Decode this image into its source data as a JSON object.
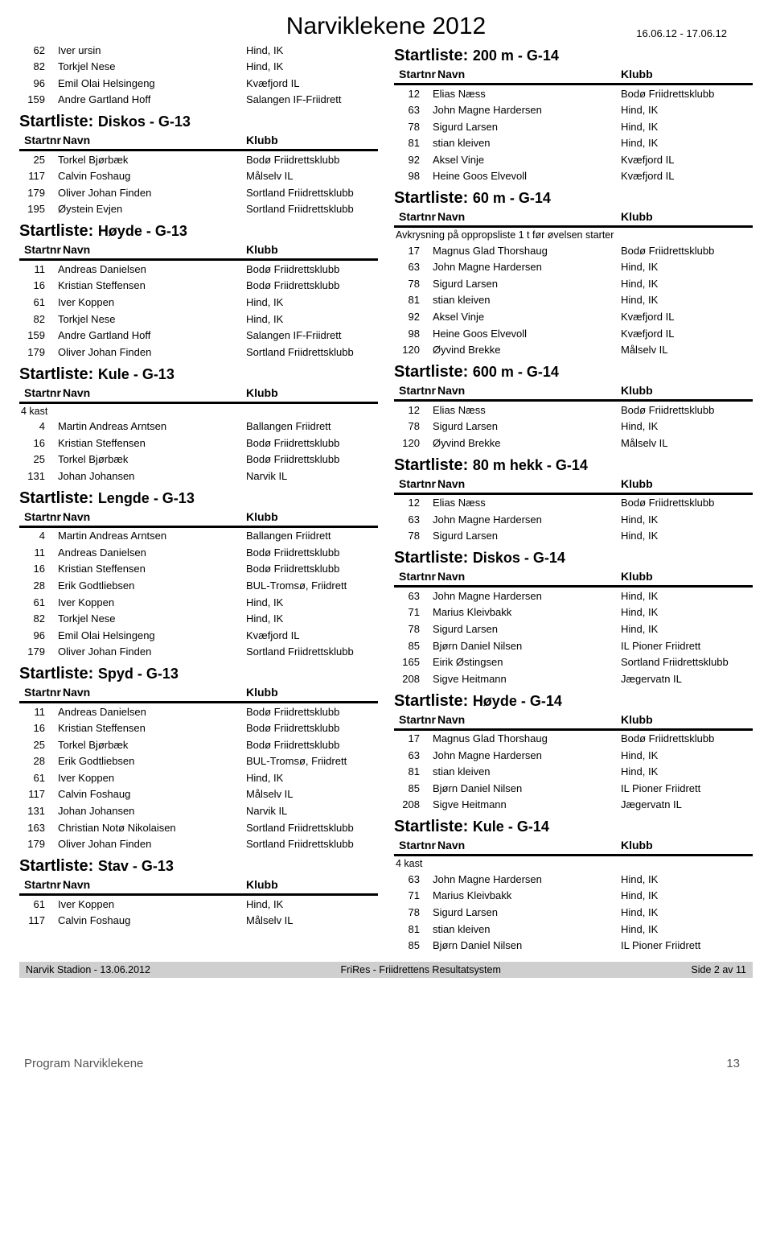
{
  "header": {
    "title": "Narviklekene 2012",
    "date_range": "16.06.12 - 17.06.12"
  },
  "labels": {
    "startliste": "Startliste:",
    "startnr": "Startnr",
    "navn": "Navn",
    "klubb": "Klubb"
  },
  "left": {
    "pre_rows": [
      {
        "nr": "62",
        "name": "Iver ursin",
        "club": "Hind, IK"
      },
      {
        "nr": "82",
        "name": "Torkjel Nese",
        "club": "Hind, IK"
      },
      {
        "nr": "96",
        "name": "Emil Olai Helsingeng",
        "club": "Kvæfjord IL"
      },
      {
        "nr": "159",
        "name": "Andre Gartland Hoff",
        "club": "Salangen IF-Friidrett"
      }
    ],
    "sections": [
      {
        "event": "Diskos - G-13",
        "rows": [
          {
            "nr": "25",
            "name": "Torkel Bjørbæk",
            "club": "Bodø Friidrettsklubb"
          },
          {
            "nr": "117",
            "name": "Calvin Foshaug",
            "club": "Målselv IL"
          },
          {
            "nr": "179",
            "name": "Oliver Johan Finden",
            "club": "Sortland Friidrettsklubb"
          },
          {
            "nr": "195",
            "name": "Øystein Evjen",
            "club": "Sortland Friidrettsklubb"
          }
        ]
      },
      {
        "event": "Høyde - G-13",
        "rows": [
          {
            "nr": "11",
            "name": "Andreas Danielsen",
            "club": "Bodø Friidrettsklubb"
          },
          {
            "nr": "16",
            "name": "Kristian Steffensen",
            "club": "Bodø Friidrettsklubb"
          },
          {
            "nr": "61",
            "name": "Iver Koppen",
            "club": "Hind, IK"
          },
          {
            "nr": "82",
            "name": "Torkjel Nese",
            "club": "Hind, IK"
          },
          {
            "nr": "159",
            "name": "Andre Gartland Hoff",
            "club": "Salangen IF-Friidrett"
          },
          {
            "nr": "179",
            "name": "Oliver Johan Finden",
            "club": "Sortland Friidrettsklubb"
          }
        ]
      },
      {
        "event": "Kule - G-13",
        "note": "4 kast",
        "rows": [
          {
            "nr": "4",
            "name": "Martin Andreas Arntsen",
            "club": "Ballangen Friidrett"
          },
          {
            "nr": "16",
            "name": "Kristian Steffensen",
            "club": "Bodø Friidrettsklubb"
          },
          {
            "nr": "25",
            "name": "Torkel Bjørbæk",
            "club": "Bodø Friidrettsklubb"
          },
          {
            "nr": "131",
            "name": "Johan Johansen",
            "club": "Narvik IL"
          }
        ]
      },
      {
        "event": "Lengde - G-13",
        "rows": [
          {
            "nr": "4",
            "name": "Martin Andreas Arntsen",
            "club": "Ballangen Friidrett"
          },
          {
            "nr": "11",
            "name": "Andreas Danielsen",
            "club": "Bodø Friidrettsklubb"
          },
          {
            "nr": "16",
            "name": "Kristian Steffensen",
            "club": "Bodø Friidrettsklubb"
          },
          {
            "nr": "28",
            "name": "Erik Godtliebsen",
            "club": "BUL-Tromsø, Friidrett"
          },
          {
            "nr": "61",
            "name": "Iver Koppen",
            "club": "Hind, IK"
          },
          {
            "nr": "82",
            "name": "Torkjel Nese",
            "club": "Hind, IK"
          },
          {
            "nr": "96",
            "name": "Emil Olai Helsingeng",
            "club": "Kvæfjord IL"
          },
          {
            "nr": "179",
            "name": "Oliver Johan Finden",
            "club": "Sortland Friidrettsklubb"
          }
        ]
      },
      {
        "event": "Spyd - G-13",
        "rows": [
          {
            "nr": "11",
            "name": "Andreas Danielsen",
            "club": "Bodø Friidrettsklubb"
          },
          {
            "nr": "16",
            "name": "Kristian Steffensen",
            "club": "Bodø Friidrettsklubb"
          },
          {
            "nr": "25",
            "name": "Torkel Bjørbæk",
            "club": "Bodø Friidrettsklubb"
          },
          {
            "nr": "28",
            "name": "Erik Godtliebsen",
            "club": "BUL-Tromsø, Friidrett"
          },
          {
            "nr": "61",
            "name": "Iver Koppen",
            "club": "Hind, IK"
          },
          {
            "nr": "117",
            "name": "Calvin Foshaug",
            "club": "Målselv IL"
          },
          {
            "nr": "131",
            "name": "Johan Johansen",
            "club": "Narvik IL"
          },
          {
            "nr": "163",
            "name": "Christian Notø Nikolaisen",
            "club": "Sortland Friidrettsklubb"
          },
          {
            "nr": "179",
            "name": "Oliver Johan Finden",
            "club": "Sortland Friidrettsklubb"
          }
        ]
      },
      {
        "event": "Stav - G-13",
        "rows": [
          {
            "nr": "61",
            "name": "Iver Koppen",
            "club": "Hind, IK"
          },
          {
            "nr": "117",
            "name": "Calvin Foshaug",
            "club": "Målselv IL"
          }
        ]
      }
    ]
  },
  "right": {
    "sections": [
      {
        "event": "200 m - G-14",
        "rows": [
          {
            "nr": "12",
            "name": "Elias Næss",
            "club": "Bodø Friidrettsklubb"
          },
          {
            "nr": "63",
            "name": "John Magne Hardersen",
            "club": "Hind, IK"
          },
          {
            "nr": "78",
            "name": "Sigurd Larsen",
            "club": "Hind, IK"
          },
          {
            "nr": "81",
            "name": "stian kleiven",
            "club": "Hind, IK"
          },
          {
            "nr": "92",
            "name": "Aksel Vinje",
            "club": "Kvæfjord IL"
          },
          {
            "nr": "98",
            "name": "Heine Goos Elvevoll",
            "club": "Kvæfjord IL"
          }
        ]
      },
      {
        "event": "60 m - G-14",
        "note": "Avkrysning på oppropsliste 1 t før øvelsen starter",
        "rows": [
          {
            "nr": "17",
            "name": "Magnus Glad Thorshaug",
            "club": "Bodø Friidrettsklubb"
          },
          {
            "nr": "63",
            "name": "John Magne Hardersen",
            "club": "Hind, IK"
          },
          {
            "nr": "78",
            "name": "Sigurd Larsen",
            "club": "Hind, IK"
          },
          {
            "nr": "81",
            "name": "stian kleiven",
            "club": "Hind, IK"
          },
          {
            "nr": "92",
            "name": "Aksel Vinje",
            "club": "Kvæfjord IL"
          },
          {
            "nr": "98",
            "name": "Heine Goos Elvevoll",
            "club": "Kvæfjord IL"
          },
          {
            "nr": "120",
            "name": "Øyvind Brekke",
            "club": "Målselv IL"
          }
        ]
      },
      {
        "event": "600 m - G-14",
        "rows": [
          {
            "nr": "12",
            "name": "Elias Næss",
            "club": "Bodø Friidrettsklubb"
          },
          {
            "nr": "78",
            "name": "Sigurd Larsen",
            "club": "Hind, IK"
          },
          {
            "nr": "120",
            "name": "Øyvind Brekke",
            "club": "Målselv IL"
          }
        ]
      },
      {
        "event": "80 m hekk - G-14",
        "rows": [
          {
            "nr": "12",
            "name": "Elias Næss",
            "club": "Bodø Friidrettsklubb"
          },
          {
            "nr": "63",
            "name": "John Magne Hardersen",
            "club": "Hind, IK"
          },
          {
            "nr": "78",
            "name": "Sigurd Larsen",
            "club": "Hind, IK"
          }
        ]
      },
      {
        "event": "Diskos - G-14",
        "rows": [
          {
            "nr": "63",
            "name": "John Magne Hardersen",
            "club": "Hind, IK"
          },
          {
            "nr": "71",
            "name": "Marius Kleivbakk",
            "club": "Hind, IK"
          },
          {
            "nr": "78",
            "name": "Sigurd Larsen",
            "club": "Hind, IK"
          },
          {
            "nr": "85",
            "name": "Bjørn Daniel Nilsen",
            "club": "IL Pioner Friidrett"
          },
          {
            "nr": "165",
            "name": "Eirik Østingsen",
            "club": "Sortland Friidrettsklubb"
          },
          {
            "nr": "208",
            "name": "Sigve Heitmann",
            "club": "Jægervatn IL"
          }
        ]
      },
      {
        "event": "Høyde - G-14",
        "rows": [
          {
            "nr": "17",
            "name": "Magnus Glad Thorshaug",
            "club": "Bodø Friidrettsklubb"
          },
          {
            "nr": "63",
            "name": "John Magne Hardersen",
            "club": "Hind, IK"
          },
          {
            "nr": "81",
            "name": "stian kleiven",
            "club": "Hind, IK"
          },
          {
            "nr": "85",
            "name": "Bjørn Daniel Nilsen",
            "club": "IL Pioner Friidrett"
          },
          {
            "nr": "208",
            "name": "Sigve Heitmann",
            "club": "Jægervatn IL"
          }
        ]
      },
      {
        "event": "Kule - G-14",
        "note": "4 kast",
        "rows": [
          {
            "nr": "63",
            "name": "John Magne Hardersen",
            "club": "Hind, IK"
          },
          {
            "nr": "71",
            "name": "Marius Kleivbakk",
            "club": "Hind, IK"
          },
          {
            "nr": "78",
            "name": "Sigurd Larsen",
            "club": "Hind, IK"
          },
          {
            "nr": "81",
            "name": "stian kleiven",
            "club": "Hind, IK"
          },
          {
            "nr": "85",
            "name": "Bjørn Daniel Nilsen",
            "club": "IL Pioner Friidrett"
          }
        ]
      }
    ]
  },
  "footer": {
    "left": "Narvik Stadion - 13.06.2012",
    "center": "FriRes - Friidrettens Resultatsystem",
    "right": "Side 2 av 11"
  },
  "bottom": {
    "label": "Program Narviklekene",
    "page": "13"
  }
}
